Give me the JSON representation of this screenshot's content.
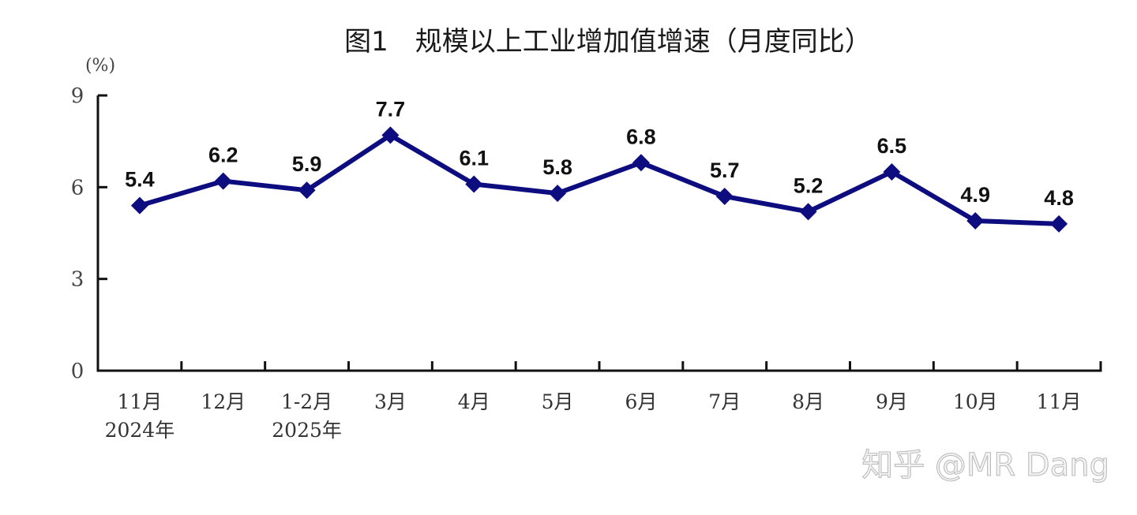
{
  "chart_data": {
    "type": "line",
    "title": "图1　规模以上工业增加值增速（月度同比）",
    "ylabel": "(%)",
    "xlabel": "",
    "ylim": [
      0,
      9
    ],
    "yticks": [
      0,
      3,
      6,
      9
    ],
    "grid": false,
    "legend": null,
    "categories": [
      "11月 2024年",
      "12月",
      "1-2月 2025年",
      "3月",
      "4月",
      "5月",
      "6月",
      "7月",
      "8月",
      "9月",
      "10月",
      "11月"
    ],
    "category_lines": [
      [
        "11月",
        "2024年"
      ],
      [
        "12月"
      ],
      [
        "1-2月",
        "2025年"
      ],
      [
        "3月"
      ],
      [
        "4月"
      ],
      [
        "5月"
      ],
      [
        "6月"
      ],
      [
        "7月"
      ],
      [
        "8月"
      ],
      [
        "9月"
      ],
      [
        "10月"
      ],
      [
        "11月"
      ]
    ],
    "series": [
      {
        "name": "规模以上工业增加值增速",
        "values": [
          5.4,
          6.2,
          5.9,
          7.7,
          6.1,
          5.8,
          6.8,
          5.7,
          5.2,
          6.5,
          4.9,
          4.8
        ],
        "labels": [
          "5.4",
          "6.2",
          "5.9",
          "7.7",
          "6.1",
          "5.8",
          "6.8",
          "5.7",
          "5.2",
          "6.5",
          "4.9",
          "4.8"
        ],
        "color": "#0d0d80",
        "marker": "diamond"
      }
    ]
  },
  "colors": {
    "line": "#0d0d80",
    "axis": "#111111",
    "background": "#ffffff"
  },
  "watermark": "知乎 @MR Dang"
}
